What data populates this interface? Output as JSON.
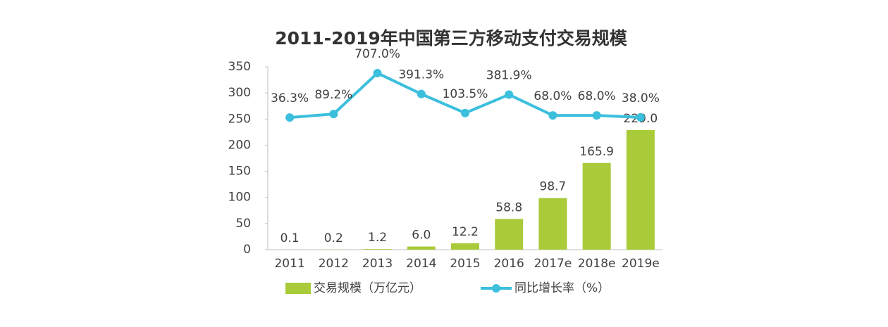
{
  "chart_data": {
    "type": "bar-line",
    "title": "2011-2019年中国第三方移动支付交易规模",
    "categories": [
      "2011",
      "2012",
      "2013",
      "2014",
      "2015",
      "2016",
      "2017e",
      "2018e",
      "2019e"
    ],
    "series": [
      {
        "name": "交易规模（万亿元）",
        "type": "bar",
        "color": "#a9cb3a",
        "values": [
          0.1,
          0.2,
          1.2,
          6.0,
          12.2,
          58.8,
          98.7,
          165.9,
          229.0
        ],
        "value_labels": [
          "0.1",
          "0.2",
          "1.2",
          "6.0",
          "12.2",
          "58.8",
          "98.7",
          "165.9",
          "229.0"
        ]
      },
      {
        "name": "同比增长率（%）",
        "type": "line",
        "axis": "y2",
        "color": "#3bbfdd",
        "values": [
          36.3,
          89.2,
          707.0,
          391.3,
          103.5,
          381.9,
          68.0,
          68.0,
          38.0
        ],
        "value_labels": [
          "36.3%",
          "89.2%",
          "707.0%",
          "391.3%",
          "103.5%",
          "381.9%",
          "68.0%",
          "68.0%",
          "38.0%"
        ]
      }
    ],
    "ylim": [
      0,
      350
    ],
    "yticks": [
      0,
      50,
      100,
      150,
      200,
      250,
      300,
      350
    ],
    "y2lim": [
      -1960,
      802
    ],
    "legend": "bottom"
  }
}
